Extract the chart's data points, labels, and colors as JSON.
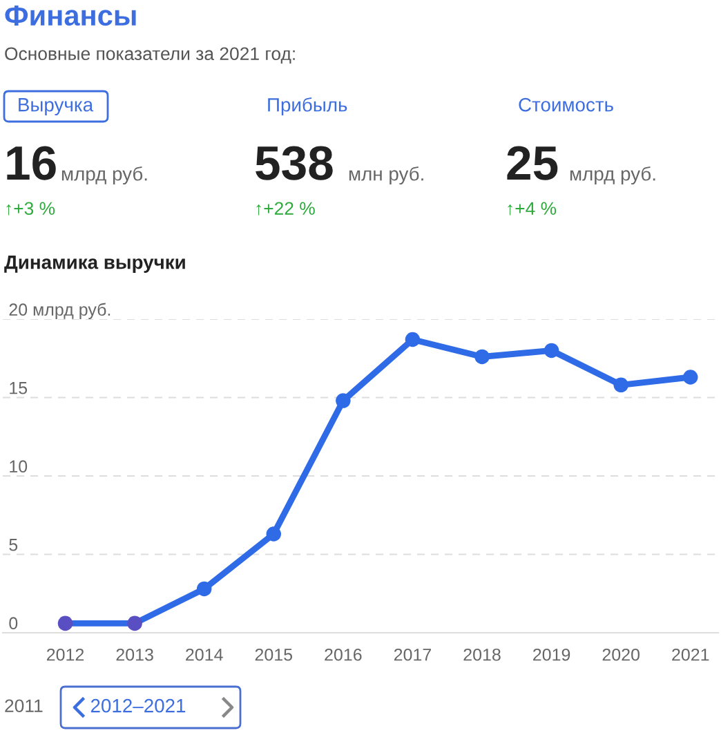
{
  "chart_data": {
    "type": "line",
    "title": "Финансы",
    "subtitle": "Основные показатели за 2021 год:",
    "annotations": [
      "Выручка",
      "Прибыль",
      "Стоимость",
      "16",
      "млрд руб.",
      "538",
      "млн руб.",
      "25",
      "млрд руб.",
      "↑+3 %",
      "↑+22 %",
      "↑+4 %",
      "Динамика выручки",
      "2011",
      "2012–2021"
    ],
    "categories": [
      "2012",
      "2013",
      "2014",
      "2015",
      "2016",
      "2017",
      "2018",
      "2019",
      "2020",
      "2021"
    ],
    "series": [
      {
        "color": "#2f6be6",
        "colors": [
          "#5a4fc2",
          "#5a4fc2",
          "#2f6be6",
          "#2f6be6",
          "#2f6be6",
          "#2f6be6",
          "#2f6be6",
          "#2f6be6",
          "#2f6be6",
          "#2f6be6"
        ],
        "values": [
          0.6,
          0.6,
          2.8,
          6.3,
          14.8,
          18.7,
          17.6,
          18.0,
          15.8,
          16.3
        ]
      }
    ],
    "ylim": [
      0,
      20
    ],
    "yticks": [
      0,
      5,
      10,
      15,
      {
        "value": 20,
        "label": "20 млрд руб."
      }
    ],
    "grid": "y",
    "marker": "circle",
    "line_style": "solid",
    "legend": false
  }
}
